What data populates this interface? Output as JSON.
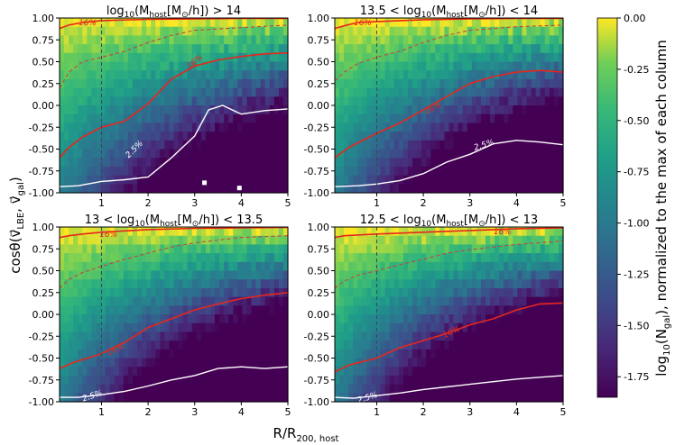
{
  "figure": {
    "xlabel": "R/R",
    "xlabel_sub": "200, host",
    "ylabel": "cosθ(v⃗",
    "ylabel_sub": "LBE",
    "ylabel_mid": ", v⃗",
    "ylabel_sub2": "gal",
    "ylabel_end": ")"
  },
  "colorbar": {
    "label": "log₁₀(N_gal), normalized to the max of each column",
    "label_pre": "log",
    "label_pre_sub": "10",
    "label_mid": "(N",
    "label_mid_sub": "gal",
    "label_post": "), normalized to the max of each column",
    "ticks": [
      "0.00",
      "-0.25",
      "-0.50",
      "-0.75",
      "-1.00",
      "-1.25",
      "-1.50",
      "-1.75"
    ],
    "tick_values": [
      0,
      -0.25,
      -0.5,
      -0.75,
      -1.0,
      -1.25,
      -1.5,
      -1.75
    ],
    "range": [
      -1.85,
      0
    ],
    "colormap": "viridis"
  },
  "colors": {
    "contour_16": "#e8261d",
    "contour_2p5": "#ffffff",
    "dashed_median": "#c4443f",
    "vertical_line": "#3a4a52"
  },
  "chart_data": [
    {
      "type": "heatmap",
      "title": "log10(Mhost[M⊙/h]) > 14",
      "title_parts": [
        "log",
        "10",
        "(M",
        "host",
        "[M",
        "⊙",
        "/h]) > 14"
      ],
      "xlim": [
        0.1,
        5
      ],
      "ylim": [
        -1,
        1
      ],
      "xticks": [
        "1",
        "2",
        "3",
        "4",
        "5"
      ],
      "yticks": [
        "1.00",
        "0.75",
        "0.50",
        "0.25",
        "0.00",
        "-0.25",
        "-0.50",
        "-0.75",
        "-1.00"
      ],
      "vline_x": 1,
      "contour_16_upper": [
        [
          0.1,
          0.88
        ],
        [
          0.3,
          0.92
        ],
        [
          0.6,
          0.95
        ],
        [
          1,
          0.97
        ],
        [
          2,
          0.985
        ],
        [
          3,
          0.99
        ],
        [
          4,
          0.995
        ],
        [
          5,
          0.995
        ]
      ],
      "contour_16_lower": [
        [
          0.1,
          -0.6
        ],
        [
          0.3,
          -0.48
        ],
        [
          0.6,
          -0.36
        ],
        [
          1,
          -0.25
        ],
        [
          1.5,
          -0.18
        ],
        [
          2,
          0.02
        ],
        [
          2.5,
          0.3
        ],
        [
          3,
          0.45
        ],
        [
          3.5,
          0.52
        ],
        [
          4,
          0.56
        ],
        [
          4.5,
          0.59
        ],
        [
          5,
          0.6
        ]
      ],
      "median_dashed": [
        [
          0.1,
          0.2
        ],
        [
          0.3,
          0.38
        ],
        [
          0.6,
          0.5
        ],
        [
          1,
          0.55
        ],
        [
          1.5,
          0.62
        ],
        [
          2,
          0.72
        ],
        [
          2.5,
          0.8
        ],
        [
          3,
          0.86
        ],
        [
          4,
          0.89
        ],
        [
          5,
          0.92
        ]
      ],
      "contour_2p5": [
        [
          0.1,
          -0.93
        ],
        [
          0.5,
          -0.92
        ],
        [
          1,
          -0.87
        ],
        [
          1.5,
          -0.85
        ],
        [
          2,
          -0.82
        ],
        [
          2.5,
          -0.6
        ],
        [
          3,
          -0.35
        ],
        [
          3.3,
          -0.05
        ],
        [
          3.6,
          0.0
        ],
        [
          4,
          -0.1
        ],
        [
          4.5,
          -0.06
        ],
        [
          5,
          -0.04
        ]
      ],
      "label_16_upper": "16%",
      "label_16_upper_at": [
        0.7,
        0.95
      ],
      "label_16_lower": "16%",
      "label_16_lower_at": [
        3.0,
        0.5
      ],
      "label_2p5": "2.5%",
      "label_2p5_at": [
        1.7,
        -0.5
      ]
    },
    {
      "type": "heatmap",
      "title": "13.5 < log10(Mhost[M⊙/h]) < 14",
      "title_parts": [
        "13.5 < log",
        "10",
        "(M",
        "host",
        "[M",
        "⊙",
        "/h]) < 14"
      ],
      "xlim": [
        0.1,
        5
      ],
      "ylim": [
        -1,
        1
      ],
      "xticks": [
        "1",
        "2",
        "3",
        "4",
        "5"
      ],
      "yticks": [
        "1.00",
        "0.75",
        "0.50",
        "0.25",
        "0.00",
        "-0.25",
        "-0.50",
        "-0.75",
        "-1.00"
      ],
      "vline_x": 1,
      "contour_16_upper": [
        [
          0.1,
          0.88
        ],
        [
          0.3,
          0.91
        ],
        [
          0.6,
          0.95
        ],
        [
          1,
          0.96
        ],
        [
          2,
          0.98
        ],
        [
          3,
          0.99
        ],
        [
          4,
          0.995
        ],
        [
          5,
          0.995
        ]
      ],
      "contour_16_lower": [
        [
          0.1,
          -0.6
        ],
        [
          0.4,
          -0.48
        ],
        [
          1,
          -0.32
        ],
        [
          1.5,
          -0.2
        ],
        [
          2,
          -0.05
        ],
        [
          2.5,
          0.1
        ],
        [
          3,
          0.25
        ],
        [
          3.5,
          0.33
        ],
        [
          4,
          0.38
        ],
        [
          4.5,
          0.4
        ],
        [
          5,
          0.38
        ]
      ],
      "median_dashed": [
        [
          0.1,
          0.28
        ],
        [
          0.3,
          0.38
        ],
        [
          0.6,
          0.48
        ],
        [
          1,
          0.55
        ],
        [
          1.5,
          0.62
        ],
        [
          2,
          0.72
        ],
        [
          2.5,
          0.8
        ],
        [
          3,
          0.86
        ],
        [
          4,
          0.9
        ],
        [
          5,
          0.92
        ]
      ],
      "contour_2p5": [
        [
          0.1,
          -0.93
        ],
        [
          0.6,
          -0.92
        ],
        [
          1,
          -0.9
        ],
        [
          1.5,
          -0.86
        ],
        [
          2,
          -0.78
        ],
        [
          2.5,
          -0.65
        ],
        [
          3,
          -0.56
        ],
        [
          3.5,
          -0.44
        ],
        [
          4,
          -0.4
        ],
        [
          4.5,
          -0.42
        ],
        [
          5,
          -0.45
        ]
      ],
      "label_16_upper": "16%",
      "label_16_upper_at": [
        0.7,
        0.95
      ],
      "label_16_lower": "16%",
      "label_16_lower_at": [
        2.2,
        -0.03
      ],
      "label_2p5": "2.5%",
      "label_2p5_at": [
        3.3,
        -0.45
      ]
    },
    {
      "type": "heatmap",
      "title": "13 < log10(Mhost[M⊙/h]) < 13.5",
      "title_parts": [
        "13 < log",
        "10",
        "(M",
        "host",
        "[M",
        "⊙",
        "/h]) < 13.5"
      ],
      "xlim": [
        0.1,
        5
      ],
      "ylim": [
        -1,
        1
      ],
      "xticks": [
        "1",
        "2",
        "3",
        "4",
        "5"
      ],
      "yticks": [
        "1.00",
        "0.75",
        "0.50",
        "0.25",
        "0.00",
        "-0.25",
        "-0.50",
        "-0.75",
        "-1.00"
      ],
      "vline_x": 1,
      "contour_16_upper": [
        [
          0.1,
          0.88
        ],
        [
          0.3,
          0.9
        ],
        [
          0.6,
          0.92
        ],
        [
          1,
          0.94
        ],
        [
          2,
          0.97
        ],
        [
          3,
          0.985
        ],
        [
          4,
          0.99
        ],
        [
          5,
          0.995
        ]
      ],
      "contour_16_lower": [
        [
          0.1,
          -0.62
        ],
        [
          0.4,
          -0.55
        ],
        [
          1,
          -0.45
        ],
        [
          1.5,
          -0.32
        ],
        [
          2,
          -0.15
        ],
        [
          2.5,
          -0.05
        ],
        [
          3,
          0.05
        ],
        [
          3.5,
          0.12
        ],
        [
          4,
          0.18
        ],
        [
          4.5,
          0.22
        ],
        [
          5,
          0.25
        ]
      ],
      "median_dashed": [
        [
          0.1,
          0.3
        ],
        [
          0.3,
          0.4
        ],
        [
          0.6,
          0.48
        ],
        [
          1,
          0.55
        ],
        [
          1.5,
          0.63
        ],
        [
          2,
          0.7
        ],
        [
          2.5,
          0.77
        ],
        [
          3,
          0.82
        ],
        [
          4,
          0.88
        ],
        [
          5,
          0.9
        ]
      ],
      "contour_2p5": [
        [
          0.1,
          -0.95
        ],
        [
          0.5,
          -0.95
        ],
        [
          1,
          -0.92
        ],
        [
          1.5,
          -0.88
        ],
        [
          2,
          -0.82
        ],
        [
          2.5,
          -0.75
        ],
        [
          3,
          -0.7
        ],
        [
          3.5,
          -0.62
        ],
        [
          4,
          -0.6
        ],
        [
          4.5,
          -0.62
        ],
        [
          5,
          -0.6
        ]
      ],
      "label_16_upper": "16%",
      "label_16_upper_at": [
        1.15,
        0.92
      ],
      "label_16_lower": "16%",
      "label_16_lower_at": [
        1.3,
        -0.4
      ],
      "label_2p5": "2.5%",
      "label_2p5_at": [
        0.8,
        -0.93
      ]
    },
    {
      "type": "heatmap",
      "title": "12.5 < log10(Mhost[M⊙/h]) < 13",
      "title_parts": [
        "12.5 < log",
        "10",
        "(M",
        "host",
        "[M",
        "⊙",
        "/h]) < 13"
      ],
      "xlim": [
        0.1,
        5
      ],
      "ylim": [
        -1,
        1
      ],
      "xticks": [
        "1",
        "2",
        "3",
        "4",
        "5"
      ],
      "yticks": [
        "1.00",
        "0.75",
        "0.50",
        "0.25",
        "0.00",
        "-0.25",
        "-0.50",
        "-0.75",
        "-1.00"
      ],
      "vline_x": 1,
      "contour_16_upper": [
        [
          0.1,
          0.88
        ],
        [
          0.3,
          0.9
        ],
        [
          1,
          0.92
        ],
        [
          2,
          0.94
        ],
        [
          3,
          0.96
        ],
        [
          4,
          0.98
        ],
        [
          5,
          0.99
        ]
      ],
      "contour_16_lower": [
        [
          0.1,
          -0.66
        ],
        [
          0.4,
          -0.58
        ],
        [
          1,
          -0.5
        ],
        [
          1.5,
          -0.38
        ],
        [
          2,
          -0.3
        ],
        [
          2.5,
          -0.22
        ],
        [
          3,
          -0.12
        ],
        [
          3.5,
          -0.05
        ],
        [
          4,
          0.05
        ],
        [
          4.5,
          0.12
        ],
        [
          5,
          0.13
        ]
      ],
      "median_dashed": [
        [
          0.1,
          0.3
        ],
        [
          0.3,
          0.38
        ],
        [
          0.6,
          0.45
        ],
        [
          1,
          0.5
        ],
        [
          1.5,
          0.57
        ],
        [
          2,
          0.63
        ],
        [
          2.5,
          0.7
        ],
        [
          3,
          0.74
        ],
        [
          4,
          0.8
        ],
        [
          5,
          0.84
        ]
      ],
      "contour_2p5": [
        [
          0.1,
          -0.95
        ],
        [
          0.5,
          -0.96
        ],
        [
          1,
          -0.93
        ],
        [
          1.5,
          -0.9
        ],
        [
          2,
          -0.86
        ],
        [
          2.5,
          -0.83
        ],
        [
          3,
          -0.8
        ],
        [
          3.5,
          -0.77
        ],
        [
          4,
          -0.74
        ],
        [
          4.5,
          -0.72
        ],
        [
          5,
          -0.7
        ]
      ],
      "label_16_upper": "16%",
      "label_16_upper_at": [
        3.7,
        0.95
      ],
      "label_16_lower": "16%",
      "label_16_lower_at": [
        2.6,
        -0.2
      ],
      "label_2p5": "2.5%",
      "label_2p5_at": [
        0.8,
        -0.95
      ]
    }
  ]
}
